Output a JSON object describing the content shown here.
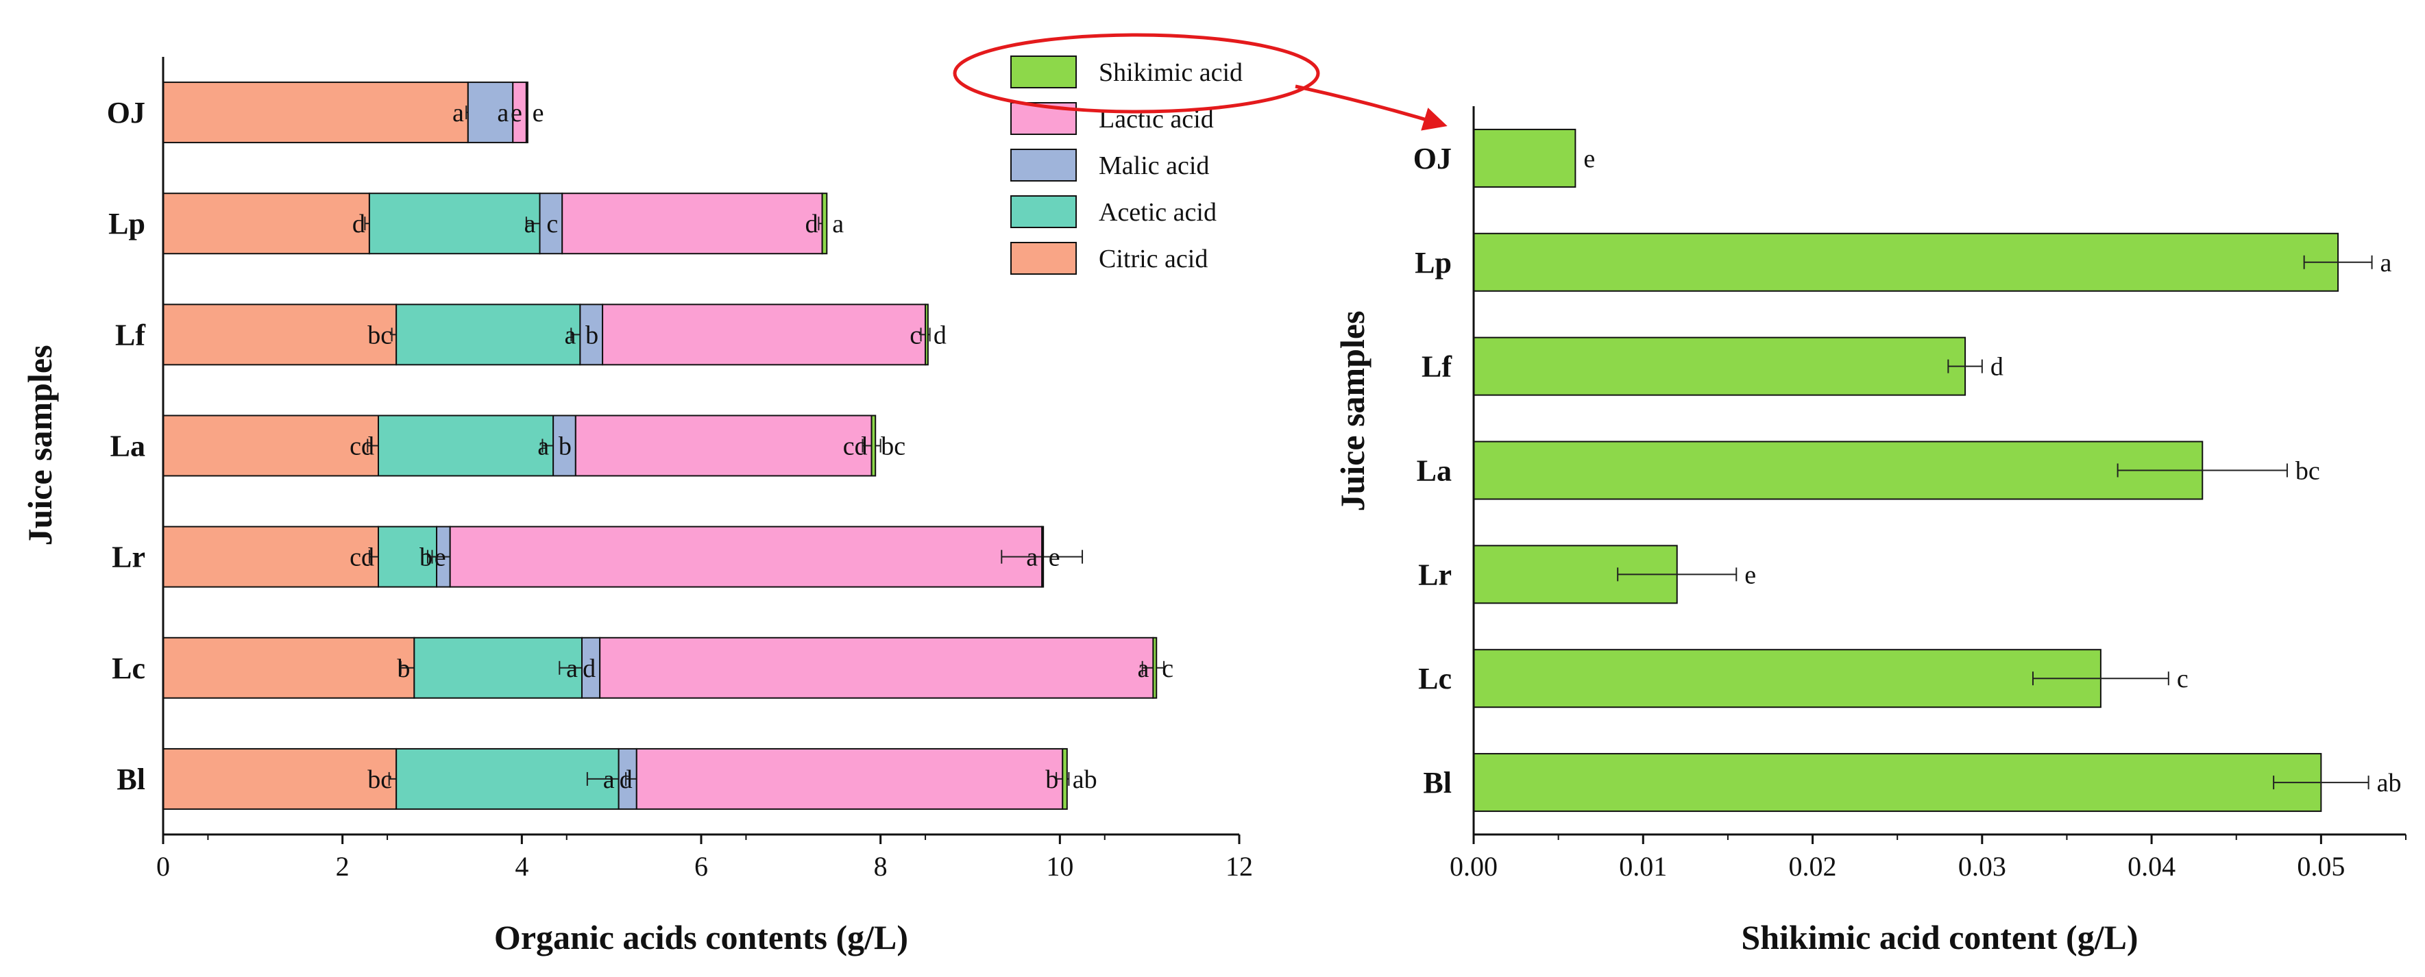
{
  "colors": {
    "citric": "#f9a586",
    "acetic": "#6ad3bc",
    "malic": "#9fb4da",
    "lactic": "#fba0d3",
    "shikimic": "#8dd84a",
    "highlight_ellipse": "#e41a1c",
    "arrow": "#e41a1c"
  },
  "chart_data": [
    {
      "type": "bar",
      "orientation": "horizontal",
      "stacked": true,
      "xlabel": "Organic acids contents (g/L)",
      "ylabel": "Juice samples",
      "xlim": [
        0,
        12
      ],
      "xticks": [
        "0",
        "2",
        "4",
        "6",
        "8",
        "10",
        "12"
      ],
      "categories": [
        "OJ",
        "Lp",
        "Lf",
        "La",
        "Lr",
        "Lc",
        "Bl"
      ],
      "series": [
        {
          "name": "Citric acid",
          "color": "#f9a586",
          "values": [
            3.4,
            2.3,
            2.6,
            2.4,
            2.4,
            2.8,
            2.6
          ],
          "errors": [
            0.02,
            0.05,
            0.05,
            0.12,
            0.1,
            0.15,
            0.08
          ],
          "letters": [
            "a",
            "d",
            "bc",
            "cd",
            "cd",
            "b",
            "bc"
          ]
        },
        {
          "name": "Acetic acid",
          "color": "#6ad3bc",
          "values": [
            0.0,
            1.9,
            2.05,
            1.95,
            0.65,
            1.87,
            2.48
          ],
          "errors": [
            0.0,
            0.15,
            0.1,
            0.12,
            0.1,
            0.25,
            0.35
          ],
          "letters": [
            "",
            "a",
            "a",
            "a",
            "b",
            "a",
            "a"
          ]
        },
        {
          "name": "Malic acid",
          "color": "#9fb4da",
          "values": [
            0.5,
            0.25,
            0.25,
            0.25,
            0.15,
            0.2,
            0.2
          ],
          "errors": [
            0.0,
            0.0,
            0.0,
            0.0,
            0.2,
            0.0,
            0.12
          ],
          "letters": [
            "a",
            "c",
            "b",
            "b",
            "e",
            "d",
            "d"
          ]
        },
        {
          "name": "Lactic acid",
          "color": "#fba0d3",
          "values": [
            0.15,
            2.9,
            3.6,
            3.3,
            6.6,
            6.17,
            4.75
          ],
          "errors": [
            0.0,
            0.04,
            0.05,
            0.1,
            0.45,
            0.12,
            0.07
          ],
          "letters": [
            "e",
            "d",
            "c",
            "cd",
            "a",
            "a",
            "b"
          ]
        },
        {
          "name": "Shikimic acid",
          "color": "#8dd84a",
          "values": [
            0.006,
            0.051,
            0.029,
            0.043,
            0.012,
            0.037,
            0.05
          ],
          "errors": [
            0.0,
            0.0,
            0.0,
            0.0,
            0.0,
            0.0,
            0.0
          ],
          "letters": [
            "e",
            "a",
            "d",
            "bc",
            "e",
            "c",
            "ab"
          ]
        }
      ],
      "legend_position": "top-right"
    },
    {
      "type": "bar",
      "orientation": "horizontal",
      "xlabel": "Shikimic acid content (g/L)",
      "ylabel": "Juice samples",
      "xlim": [
        0,
        0.055
      ],
      "xticks": [
        "0.00",
        "0.01",
        "0.02",
        "0.03",
        "0.04",
        "0.05"
      ],
      "categories": [
        "OJ",
        "Lp",
        "Lf",
        "La",
        "Lr",
        "Lc",
        "Bl"
      ],
      "values": [
        0.006,
        0.051,
        0.029,
        0.043,
        0.012,
        0.037,
        0.05
      ],
      "errors": [
        0.0,
        0.002,
        0.001,
        0.005,
        0.0035,
        0.004,
        0.0028
      ],
      "letters": [
        "e",
        "a",
        "d",
        "bc",
        "e",
        "c",
        "ab"
      ]
    }
  ],
  "legend": {
    "items": [
      {
        "label": "Shikimic acid",
        "color": "#8dd84a"
      },
      {
        "label": "Lactic acid",
        "color": "#fba0d3"
      },
      {
        "label": "Malic acid",
        "color": "#9fb4da"
      },
      {
        "label": "Acetic acid",
        "color": "#6ad3bc"
      },
      {
        "label": "Citric acid",
        "color": "#f9a586"
      }
    ],
    "highlighted": "Shikimic acid"
  }
}
